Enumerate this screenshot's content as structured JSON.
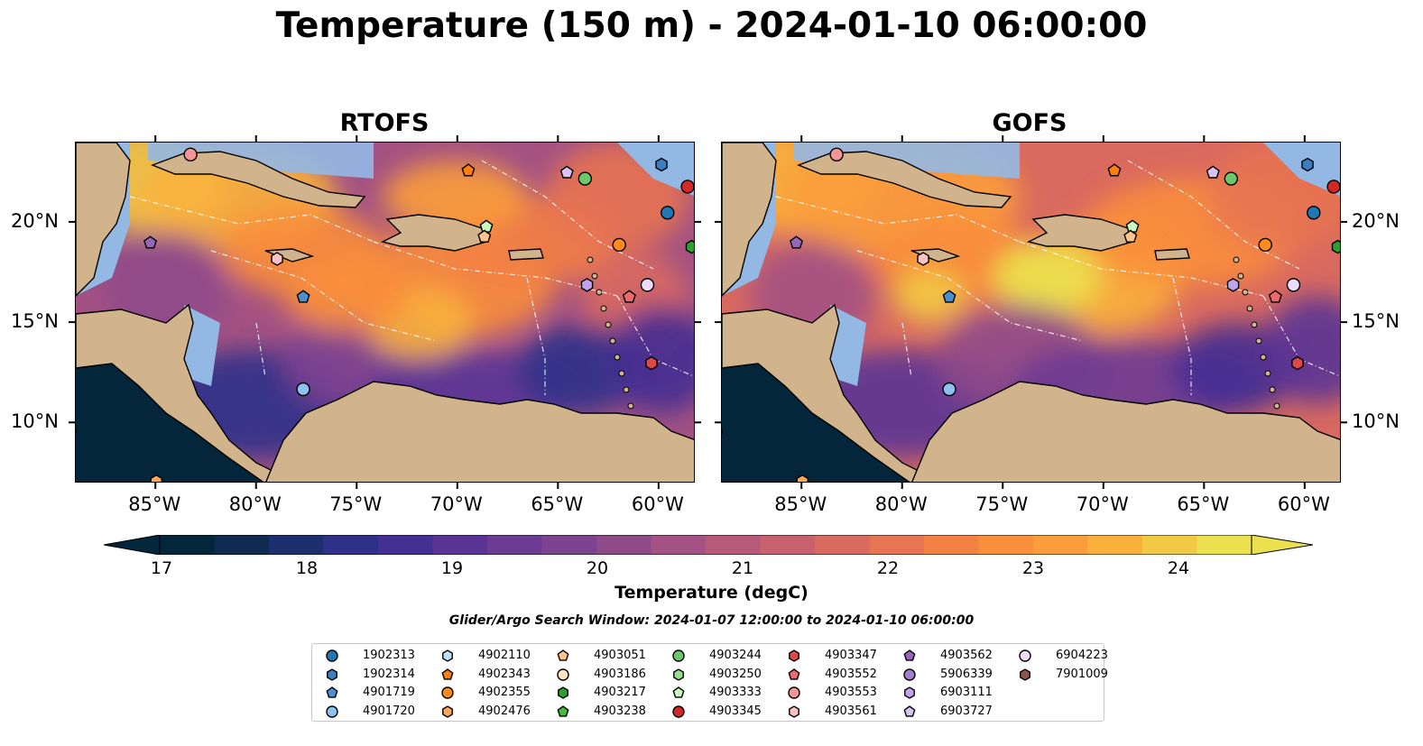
{
  "title": "Temperature (150 m) - 2024-01-10 06:00:00",
  "panels": [
    {
      "title": "RTOFS"
    },
    {
      "title": "GOFS"
    }
  ],
  "lon_ticks": [
    "85°W",
    "80°W",
    "75°W",
    "70°W",
    "65°W",
    "60°W"
  ],
  "lat_ticks": [
    "20°N",
    "15°N",
    "10°N"
  ],
  "colorbar": {
    "label": "Temperature (degC)",
    "ticks": [
      "17",
      "18",
      "19",
      "20",
      "21",
      "22",
      "23",
      "24"
    ],
    "colors": [
      "#04263a",
      "#0f2b52",
      "#1d2f6f",
      "#2f3189",
      "#442f92",
      "#5a3495",
      "#6c3b93",
      "#7d4390",
      "#8f4a8a",
      "#a35283",
      "#b75979",
      "#c8616e",
      "#d96a60",
      "#e77452",
      "#f48044",
      "#f98e3b",
      "#fb9d3a",
      "#f9b13c",
      "#f2c944",
      "#ebe04d"
    ]
  },
  "search_window": "Glider/Argo Search Window: 2024-01-07 12:00:00 to 2024-01-10 06:00:00",
  "legend": [
    {
      "id": "1902313",
      "shape": "circle",
      "color": "#1f77b4"
    },
    {
      "id": "1902314",
      "shape": "hexagon",
      "color": "#3a7fbf"
    },
    {
      "id": "4901719",
      "shape": "pentagon",
      "color": "#4a90d0"
    },
    {
      "id": "4901720",
      "shape": "circle",
      "color": "#8fc1ef"
    },
    {
      "id": "4902110",
      "shape": "hexagon",
      "color": "#bfe0fb"
    },
    {
      "id": "4902343",
      "shape": "pentagon",
      "color": "#ff7f0e"
    },
    {
      "id": "4902355",
      "shape": "circle",
      "color": "#ff8c1a"
    },
    {
      "id": "4902476",
      "shape": "hexagon",
      "color": "#ffa55a"
    },
    {
      "id": "4903051",
      "shape": "pentagon",
      "color": "#ffc48c"
    },
    {
      "id": "4903186",
      "shape": "circle",
      "color": "#ffe2c4"
    },
    {
      "id": "4903217",
      "shape": "hexagon",
      "color": "#2ca02c"
    },
    {
      "id": "4903238",
      "shape": "pentagon",
      "color": "#49b93d"
    },
    {
      "id": "4903244",
      "shape": "circle",
      "color": "#6cc86a"
    },
    {
      "id": "4903250",
      "shape": "hexagon",
      "color": "#98e08a"
    },
    {
      "id": "4903333",
      "shape": "pentagon",
      "color": "#c9f7c0"
    },
    {
      "id": "4903345",
      "shape": "circle",
      "color": "#d62728"
    },
    {
      "id": "4903347",
      "shape": "hexagon",
      "color": "#e04848"
    },
    {
      "id": "4903552",
      "shape": "pentagon",
      "color": "#ec6a6a"
    },
    {
      "id": "4903553",
      "shape": "circle",
      "color": "#f49696"
    },
    {
      "id": "4903561",
      "shape": "hexagon",
      "color": "#fdc3c3"
    },
    {
      "id": "4903562",
      "shape": "pentagon",
      "color": "#9467bd"
    },
    {
      "id": "5906339",
      "shape": "circle",
      "color": "#a37fd2"
    },
    {
      "id": "6903111",
      "shape": "hexagon",
      "color": "#c0a3ea"
    },
    {
      "id": "6903727",
      "shape": "pentagon",
      "color": "#d8c3f5"
    },
    {
      "id": "6904223",
      "shape": "circle",
      "color": "#eddcfc"
    },
    {
      "id": "7901009",
      "shape": "hexagon",
      "color": "#8c564b"
    }
  ],
  "colors": {
    "land": "#d2b48c",
    "ocean_shelf": "#94b8e4",
    "border": "#000000"
  }
}
